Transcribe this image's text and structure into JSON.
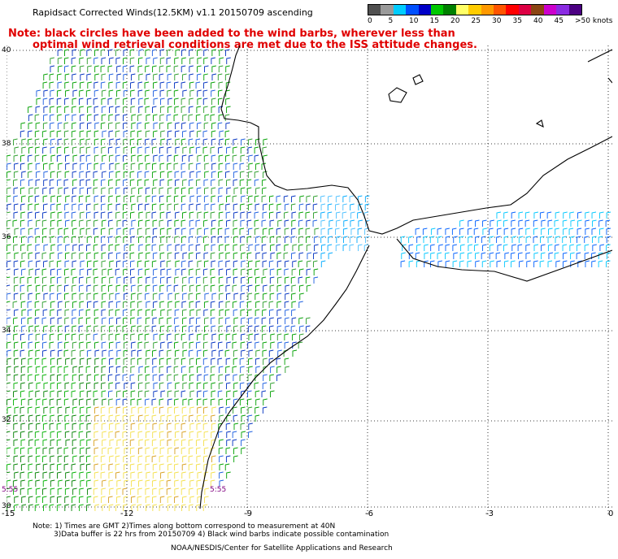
{
  "title": "Rapidsact Corrected Winds(12.5KM) v1.1 20150709 ascending",
  "note": {
    "line1": "Note: black circles have been added to the wind barbs, wherever less than",
    "line2": "optimal wind retrieval conditions are met due to the ISS attitude changes."
  },
  "legend": {
    "labels": [
      "0",
      "5",
      "10",
      "15",
      "20",
      "25",
      "30",
      "35",
      "40",
      "45",
      ">50 knots"
    ],
    "colors": [
      "#505050",
      "#9a9a9a",
      "#00ccff",
      "#0050ff",
      "#0000c8",
      "#00c800",
      "#008000",
      "#ffff66",
      "#ffcc00",
      "#ff9900",
      "#ff5500",
      "#ff0000",
      "#dd0044",
      "#8b4513",
      "#cc00cc",
      "#8a2be2",
      "#4b0082"
    ]
  },
  "axes": {
    "lat_labels": [
      "40",
      "38",
      "36",
      "34",
      "32",
      "30"
    ],
    "lon_labels": [
      "-15",
      "-12",
      "-9",
      "-6",
      "-3",
      "0"
    ]
  },
  "time_labels": {
    "left": "5:55",
    "right": "5:55"
  },
  "footer": {
    "line1": "Note: 1) Times are GMT 2)Times along bottom correspond to measurement at 40N",
    "line2": "3)Data buffer is 22 hrs from 20150709 4) Black wind barbs indicate possible contamination",
    "credit": "NOAA/NESDIS/Center for Satellite Applications and Research"
  }
}
